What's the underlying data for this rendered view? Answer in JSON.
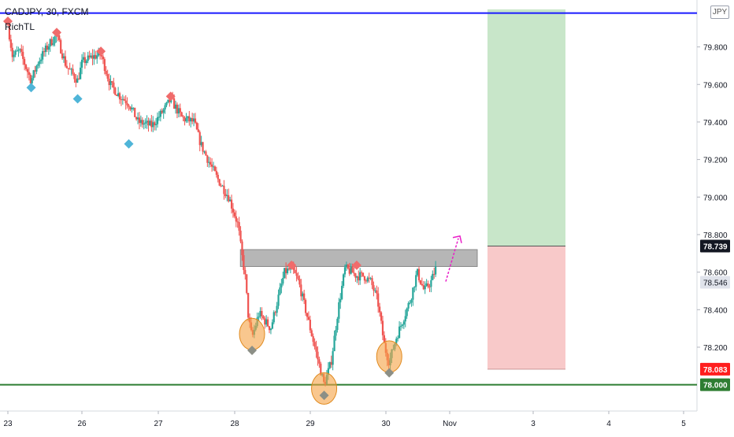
{
  "header": {
    "symbol_line": "CADJPY, 30, FXCM",
    "indicator": "RichTL",
    "currency": "JPY"
  },
  "colors": {
    "up": "#26a69a",
    "down": "#ef5350",
    "resistance_line": "#1a1aff",
    "support_line": "#2e7d32",
    "zone": "#9e9e9e",
    "target": "#c8e6c9",
    "stop": "#f8c9c9",
    "pivot_high": "#f06b6b",
    "pivot_low": "#4fb5d8",
    "circle": "#f5a142",
    "arrow": "#e91ec8"
  },
  "chart_data": {
    "type": "candlestick",
    "symbol": "CADJPY",
    "timeframe": "30",
    "source": "FXCM",
    "x_ticks": [
      "23",
      "26",
      "27",
      "28",
      "29",
      "30",
      "Nov",
      "3",
      "4",
      "5"
    ],
    "y_ticks": [
      "79.800",
      "79.600",
      "79.400",
      "79.200",
      "79.000",
      "78.800",
      "78.600",
      "78.400",
      "78.200"
    ],
    "ylim": [
      77.86,
      80.05
    ],
    "price_labels": [
      {
        "value": 78.739,
        "text": "78.739",
        "style": "dark"
      },
      {
        "value": 78.546,
        "text": "78.546",
        "style": "light"
      },
      {
        "value": 78.083,
        "text": "78.083",
        "style": "red"
      },
      {
        "value": 78.0,
        "text": "78.000",
        "style": "green"
      }
    ],
    "resistance_line": 79.98,
    "support_line": 78.0,
    "resistance_zone": [
      78.63,
      78.72
    ],
    "position": {
      "entry": 78.739,
      "target": 80.0,
      "stop": 78.083
    },
    "path": [
      [
        0,
        79.92
      ],
      [
        0.2,
        79.75
      ],
      [
        0.5,
        79.78
      ],
      [
        1.0,
        79.62
      ],
      [
        1.3,
        79.72
      ],
      [
        1.8,
        79.82
      ],
      [
        2.1,
        79.86
      ],
      [
        2.5,
        79.7
      ],
      [
        3.0,
        79.62
      ],
      [
        3.2,
        79.72
      ],
      [
        3.7,
        79.75
      ],
      [
        4.0,
        79.76
      ],
      [
        4.4,
        79.6
      ],
      [
        4.8,
        79.54
      ],
      [
        5.2,
        79.5
      ],
      [
        5.6,
        79.4
      ],
      [
        6.2,
        79.38
      ],
      [
        6.8,
        79.48
      ],
      [
        7.0,
        79.52
      ],
      [
        7.5,
        79.42
      ],
      [
        8.0,
        79.4
      ],
      [
        8.3,
        79.28
      ],
      [
        8.6,
        79.2
      ],
      [
        9.0,
        79.1
      ],
      [
        9.5,
        79.0
      ],
      [
        9.9,
        78.85
      ],
      [
        10.05,
        78.7
      ],
      [
        10.2,
        78.58
      ],
      [
        10.35,
        78.35
      ],
      [
        10.5,
        78.25
      ],
      [
        10.8,
        78.38
      ],
      [
        11.3,
        78.3
      ],
      [
        11.6,
        78.45
      ],
      [
        11.9,
        78.6
      ],
      [
        12.2,
        78.62
      ],
      [
        12.5,
        78.55
      ],
      [
        12.8,
        78.4
      ],
      [
        13.1,
        78.25
      ],
      [
        13.4,
        78.1
      ],
      [
        13.6,
        78.0
      ],
      [
        13.9,
        78.12
      ],
      [
        14.2,
        78.4
      ],
      [
        14.5,
        78.62
      ],
      [
        14.8,
        78.6
      ],
      [
        15.0,
        78.58
      ],
      [
        15.3,
        78.58
      ],
      [
        15.6,
        78.55
      ],
      [
        15.9,
        78.45
      ],
      [
        16.2,
        78.2
      ],
      [
        16.4,
        78.12
      ],
      [
        16.7,
        78.25
      ],
      [
        17.0,
        78.35
      ],
      [
        17.3,
        78.45
      ],
      [
        17.6,
        78.6
      ],
      [
        17.9,
        78.5
      ],
      [
        18.2,
        78.55
      ],
      [
        18.4,
        78.62
      ]
    ],
    "pivot_highs": [
      [
        0,
        79.92
      ],
      [
        2.1,
        79.86
      ],
      [
        4.0,
        79.76
      ],
      [
        7.0,
        79.52
      ],
      [
        12.2,
        78.62
      ],
      [
        15.0,
        78.62
      ]
    ],
    "pivot_lows": [
      [
        1.0,
        79.6
      ],
      [
        3.0,
        79.54
      ],
      [
        5.2,
        79.3
      ],
      [
        10.5,
        78.2
      ],
      [
        13.6,
        77.96
      ],
      [
        16.4,
        78.08
      ]
    ],
    "highlight_circles": [
      [
        10.5,
        78.27
      ],
      [
        13.6,
        77.98
      ],
      [
        16.4,
        78.15
      ]
    ]
  }
}
